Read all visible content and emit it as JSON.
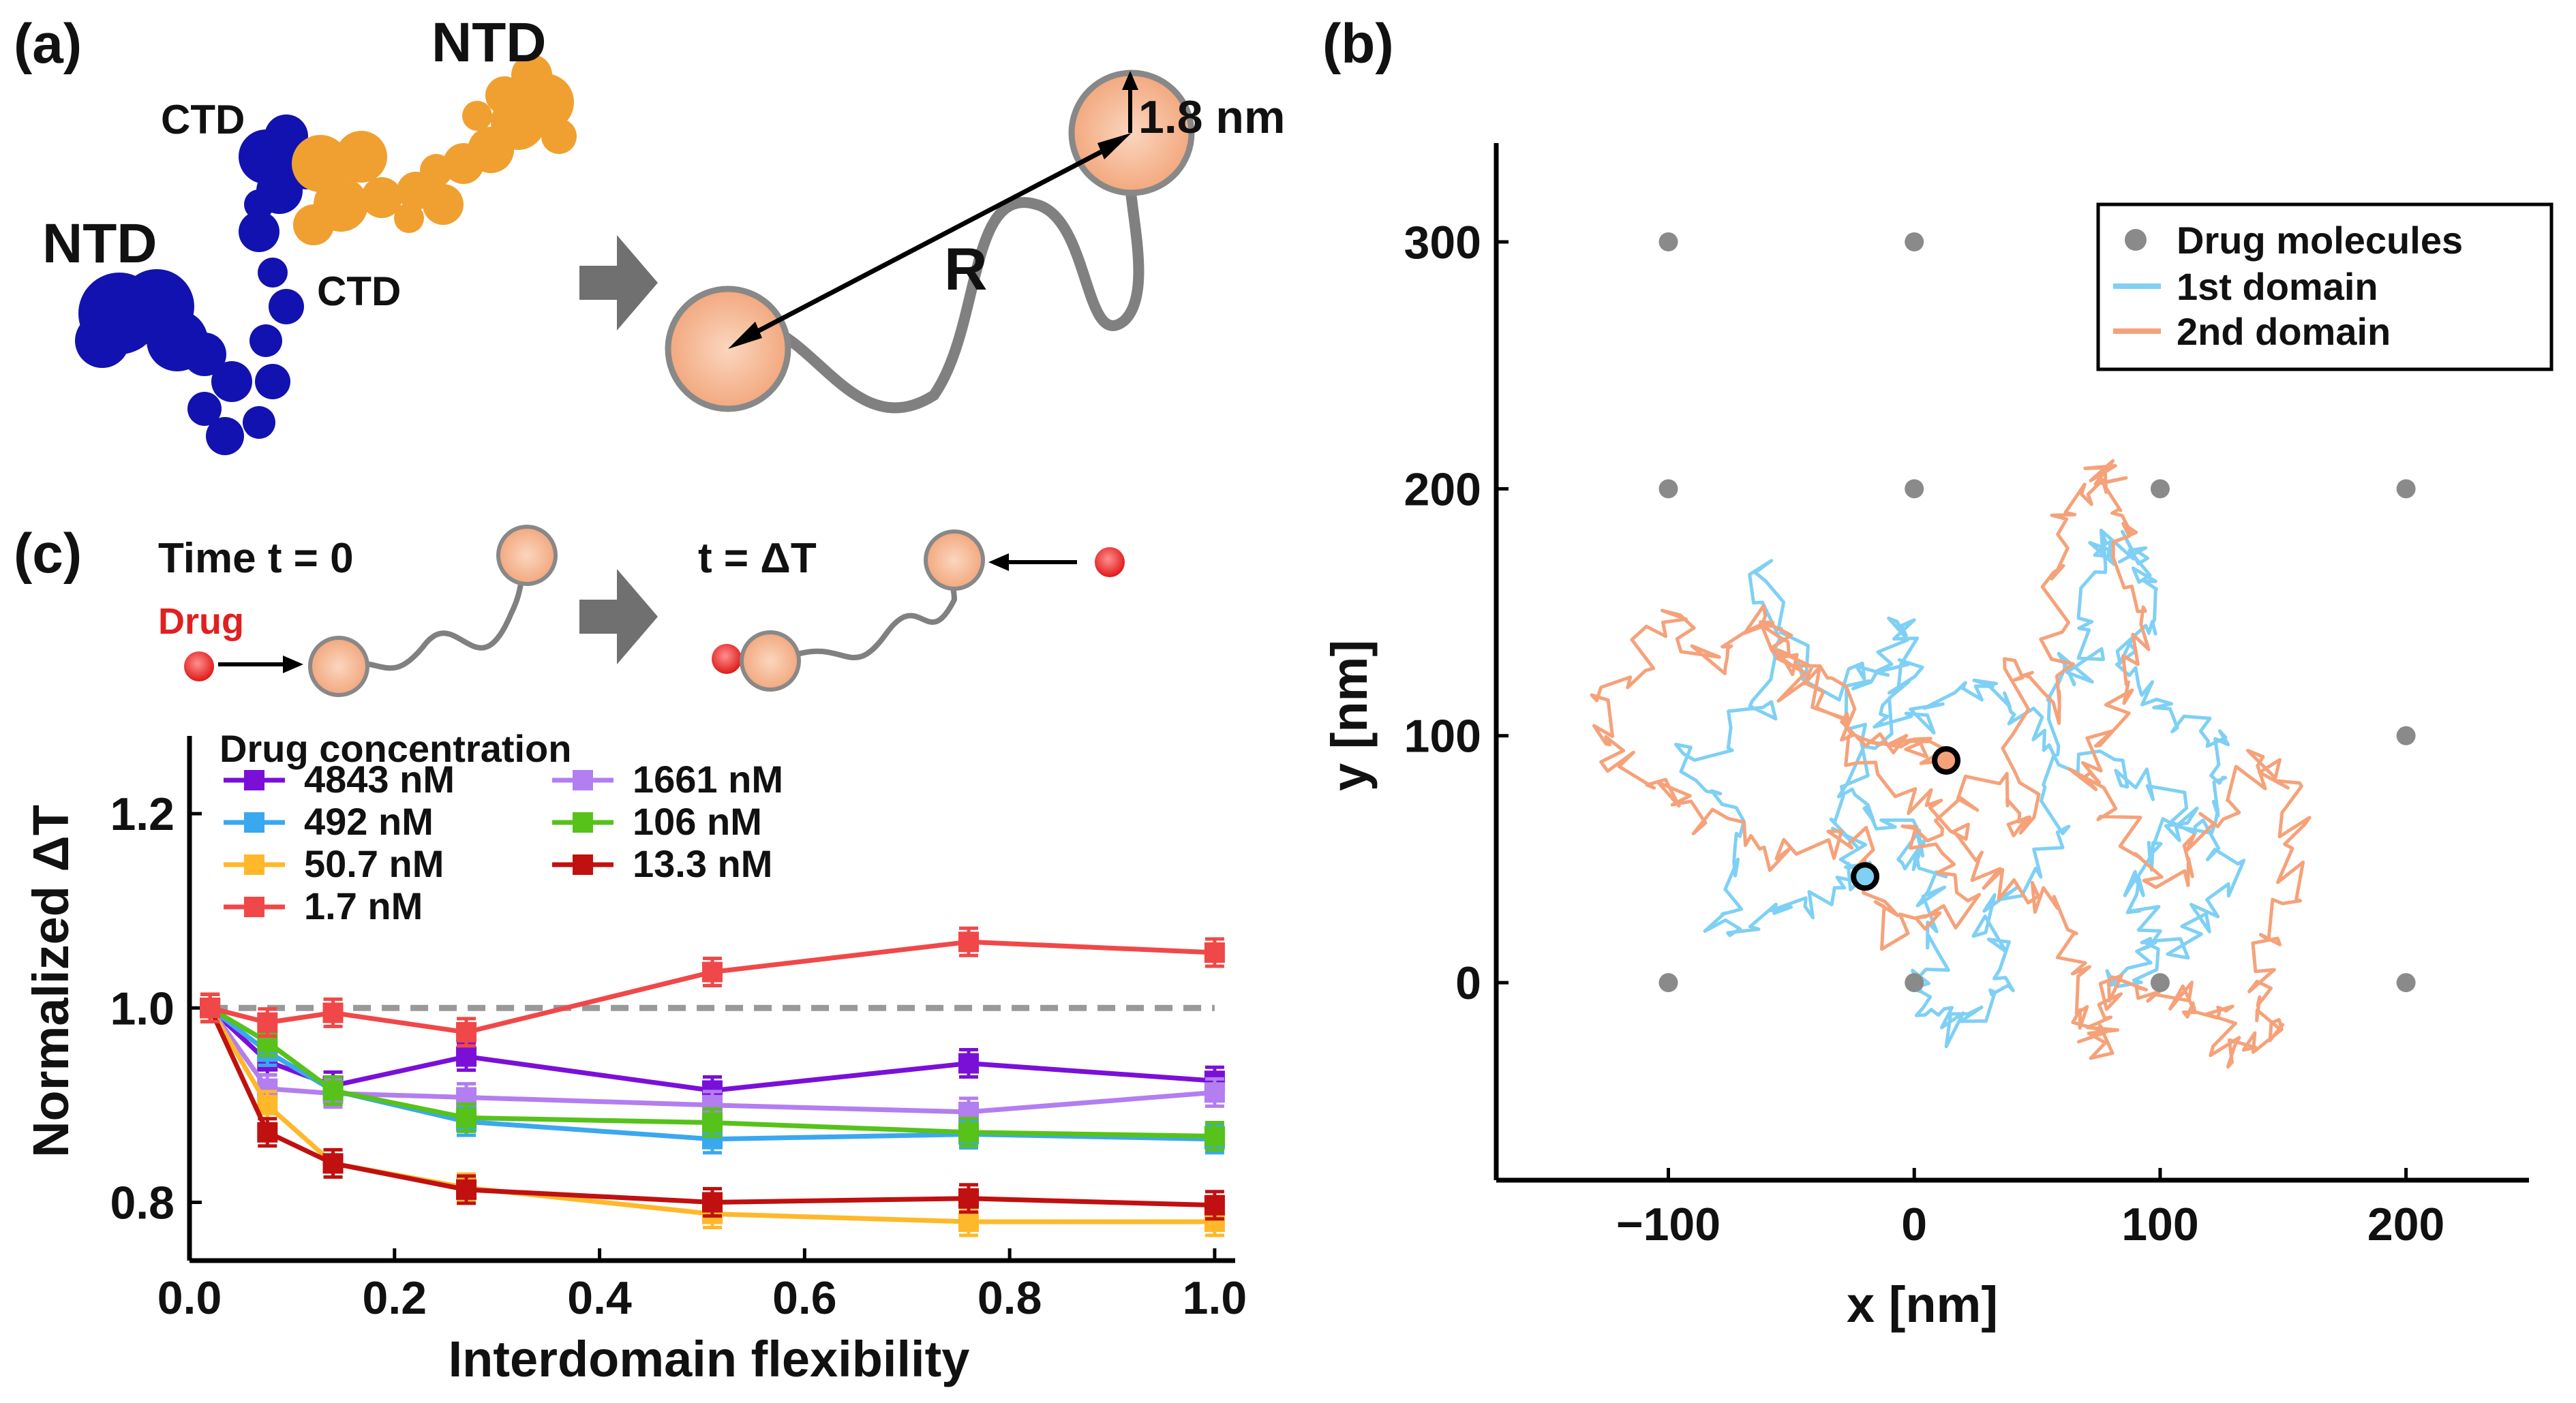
{
  "panel_labels": {
    "a": "(a)",
    "b": "(b)",
    "c": "(c)"
  },
  "panel_a": {
    "ntd_top": "NTD",
    "ntd_left": "NTD",
    "ctd_top": "CTD",
    "ctd_mid": "CTD",
    "bond_label": "R",
    "radius_label": "1.8 nm",
    "colors": {
      "blue_chain": "#1010b8",
      "orange_chain": "#f0a030",
      "domain_fill": "#f6c19e",
      "link": "#808080"
    }
  },
  "panel_c_schematic": {
    "time0_label": "Time t = 0",
    "timeT_label": "t = ΔT",
    "drug_label": "Drug",
    "drug_color": "#e82020"
  },
  "chart_data": [
    {
      "panel": "c",
      "type": "line",
      "title": "",
      "xlabel": "Interdomain flexibility",
      "ylabel": "Normalized ΔT",
      "xlim": [
        0.0,
        1.02
      ],
      "ylim": [
        0.74,
        1.28
      ],
      "xticks": [
        0.0,
        0.2,
        0.4,
        0.6,
        0.8,
        1.0
      ],
      "xtick_labels": [
        "0.0",
        "0.2",
        "0.4",
        "0.6",
        "0.8",
        "1.0"
      ],
      "yticks": [
        0.8,
        1.0,
        1.2
      ],
      "ytick_labels": [
        "0.8",
        "1.0",
        "1.2"
      ],
      "reference_line": {
        "y": 1.0,
        "style": "dashed",
        "color": "#999999"
      },
      "legend_title": "Drug concentration",
      "legend_position": "top-left",
      "x": [
        0.02,
        0.076,
        0.14,
        0.27,
        0.51,
        0.76,
        1.0
      ],
      "series": [
        {
          "name": "4843 nM",
          "color": "#7a10d8",
          "values": [
            1.0,
            0.945,
            0.92,
            0.95,
            0.915,
            0.943,
            0.925
          ]
        },
        {
          "name": "1661 nM",
          "color": "#b27ef0",
          "values": [
            1.0,
            0.917,
            0.912,
            0.908,
            0.9,
            0.893,
            0.913
          ]
        },
        {
          "name": "492 nM",
          "color": "#3aa8ee",
          "values": [
            1.0,
            0.955,
            0.915,
            0.883,
            0.865,
            0.87,
            0.865
          ]
        },
        {
          "name": "106 nM",
          "color": "#56c21a",
          "values": [
            1.0,
            0.965,
            0.915,
            0.887,
            0.882,
            0.872,
            0.868
          ]
        },
        {
          "name": "50.7 nM",
          "color": "#ffb82a",
          "values": [
            1.0,
            0.9,
            0.84,
            0.815,
            0.788,
            0.78,
            0.78
          ]
        },
        {
          "name": "13.3 nM",
          "color": "#c01010",
          "values": [
            1.0,
            0.872,
            0.84,
            0.813,
            0.8,
            0.804,
            0.797
          ]
        },
        {
          "name": "1.7 nM",
          "color": "#f04848",
          "values": [
            1.0,
            0.985,
            0.995,
            0.975,
            1.037,
            1.068,
            1.057
          ]
        }
      ]
    },
    {
      "panel": "b",
      "type": "scatter",
      "title": "",
      "xlabel": "x [nm]",
      "ylabel": "y [nm]",
      "xlim": [
        -170,
        250
      ],
      "ylim": [
        -80,
        340
      ],
      "xticks": [
        -100,
        0,
        100,
        200
      ],
      "xtick_labels": [
        "−100",
        "0",
        "100",
        "200"
      ],
      "yticks": [
        0,
        100,
        200,
        300
      ],
      "ytick_labels": [
        "0",
        "100",
        "200",
        "300"
      ],
      "legend_position": "top-right",
      "drug_molecules": {
        "name": "Drug molecules",
        "color": "#8a8a8a",
        "points": [
          [
            -100,
            300
          ],
          [
            0,
            300
          ],
          [
            -100,
            200
          ],
          [
            0,
            200
          ],
          [
            100,
            200
          ],
          [
            200,
            200
          ],
          [
            200,
            100
          ],
          [
            -100,
            0
          ],
          [
            0,
            0
          ],
          [
            100,
            0
          ],
          [
            200,
            0
          ]
        ]
      },
      "trajectories": [
        {
          "name": "1st domain",
          "color": "#7fd0f4",
          "start": [
            -20,
            43
          ],
          "path": [
            [
              -20,
              43
            ],
            [
              -50,
              30
            ],
            [
              -80,
              20
            ],
            [
              -70,
              60
            ],
            [
              -95,
              90
            ],
            [
              -60,
              110
            ],
            [
              -60,
              165
            ],
            [
              -40,
              120
            ],
            [
              0,
              130
            ],
            [
              -30,
              80
            ],
            [
              -5,
              60
            ],
            [
              5,
              50
            ],
            [
              10,
              20
            ],
            [
              0,
              -10
            ],
            [
              15,
              -20
            ],
            [
              35,
              0
            ],
            [
              30,
              30
            ],
            [
              60,
              60
            ],
            [
              50,
              120
            ],
            [
              70,
              130
            ],
            [
              75,
              170
            ],
            [
              80,
              180
            ],
            [
              90,
              175
            ],
            [
              95,
              150
            ],
            [
              85,
              130
            ],
            [
              100,
              110
            ],
            [
              130,
              100
            ],
            [
              120,
              70
            ],
            [
              100,
              60
            ],
            [
              85,
              40
            ],
            [
              100,
              20
            ],
            [
              85,
              0
            ],
            [
              110,
              20
            ],
            [
              130,
              45
            ],
            [
              100,
              80
            ],
            [
              70,
              90
            ],
            [
              40,
              110
            ],
            [
              20,
              120
            ],
            [
              -10,
              100
            ],
            [
              0,
              150
            ],
            [
              -20,
              120
            ],
            [
              -30,
              60
            ],
            [
              -20,
              43
            ]
          ]
        },
        {
          "name": "2nd domain",
          "color": "#f5a27a",
          "start": [
            13,
            90
          ],
          "path": [
            [
              13,
              90
            ],
            [
              -20,
              100
            ],
            [
              -60,
              150
            ],
            [
              -80,
              130
            ],
            [
              -100,
              150
            ],
            [
              -130,
              110
            ],
            [
              -120,
              90
            ],
            [
              -90,
              70
            ],
            [
              -60,
              50
            ],
            [
              -20,
              60
            ],
            [
              -10,
              20
            ],
            [
              20,
              30
            ],
            [
              0,
              60
            ],
            [
              30,
              80
            ],
            [
              45,
              60
            ],
            [
              40,
              130
            ],
            [
              60,
              110
            ],
            [
              55,
              160
            ],
            [
              65,
              195
            ],
            [
              80,
              210
            ],
            [
              85,
              180
            ],
            [
              90,
              140
            ],
            [
              80,
              100
            ],
            [
              70,
              80
            ],
            [
              100,
              40
            ],
            [
              120,
              60
            ],
            [
              140,
              90
            ],
            [
              155,
              70
            ],
            [
              150,
              30
            ],
            [
              140,
              0
            ],
            [
              150,
              -20
            ],
            [
              130,
              -30
            ],
            [
              120,
              -10
            ],
            [
              105,
              -5
            ],
            [
              80,
              0
            ],
            [
              75,
              -30
            ],
            [
              70,
              -10
            ],
            [
              60,
              30
            ],
            [
              30,
              40
            ],
            [
              20,
              60
            ],
            [
              -10,
              80
            ],
            [
              -50,
              120
            ],
            [
              -60,
              145
            ],
            [
              -20,
              100
            ],
            [
              13,
              90
            ]
          ]
        }
      ]
    }
  ]
}
